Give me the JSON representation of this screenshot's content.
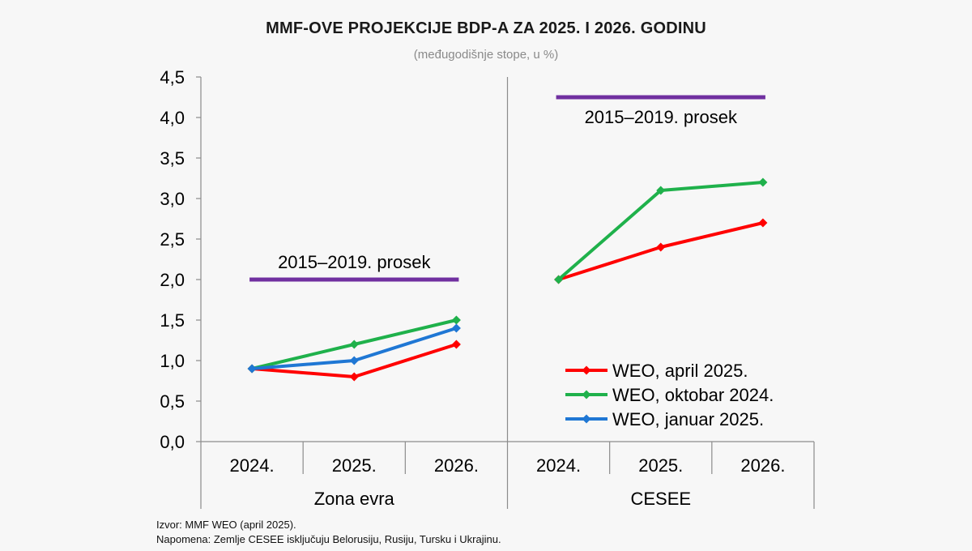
{
  "header": {
    "title": "MMF-OVE PROJEKCIJE BDP-A ZA 2025. I 2026. GODINU",
    "subtitle": "(međugodišnje stope, u %)"
  },
  "footer": {
    "source": "Izvor: MMF WEO (april 2025).",
    "note": "Napomena: Zemlje CESEE isključuju Belorusiju, Rusiju, Tursku i Ukrajinu."
  },
  "chart_data": {
    "type": "line",
    "ylim": [
      0,
      4.5
    ],
    "yticks": [
      "0,0",
      "0,5",
      "1,0",
      "1,5",
      "2,0",
      "2,5",
      "3,0",
      "3,5",
      "4,0",
      "4,5"
    ],
    "grid": false,
    "legend_position": "bottom-right",
    "groups": [
      {
        "name": "Zona evra",
        "categories": [
          "2024.",
          "2025.",
          "2026."
        ],
        "series": [
          {
            "name": "WEO, april 2025.",
            "color": "#ff0000",
            "values": [
              0.9,
              0.8,
              1.2
            ]
          },
          {
            "name": "WEO, oktobar 2024.",
            "color": "#1fb14b",
            "values": [
              0.9,
              1.2,
              1.5
            ]
          },
          {
            "name": "WEO, januar 2025.",
            "color": "#1f77d4",
            "values": [
              0.9,
              1.0,
              1.4
            ]
          }
        ],
        "average": {
          "label": "2015–2019. prosek",
          "value": 2.0,
          "color": "#7030a0"
        }
      },
      {
        "name": "CESEE",
        "categories": [
          "2024.",
          "2025.",
          "2026."
        ],
        "series": [
          {
            "name": "WEO, april 2025.",
            "color": "#ff0000",
            "values": [
              2.0,
              2.4,
              2.7
            ]
          },
          {
            "name": "WEO, oktobar 2024.",
            "color": "#1fb14b",
            "values": [
              2.0,
              3.1,
              3.2
            ]
          }
        ],
        "average": {
          "label": "2015–2019. prosek",
          "value": 4.25,
          "color": "#7030a0"
        }
      }
    ],
    "legend": [
      {
        "label": "WEO, april 2025.",
        "color": "#ff0000"
      },
      {
        "label": "WEO, oktobar 2024.",
        "color": "#1fb14b"
      },
      {
        "label": "WEO, januar 2025.",
        "color": "#1f77d4"
      }
    ]
  }
}
